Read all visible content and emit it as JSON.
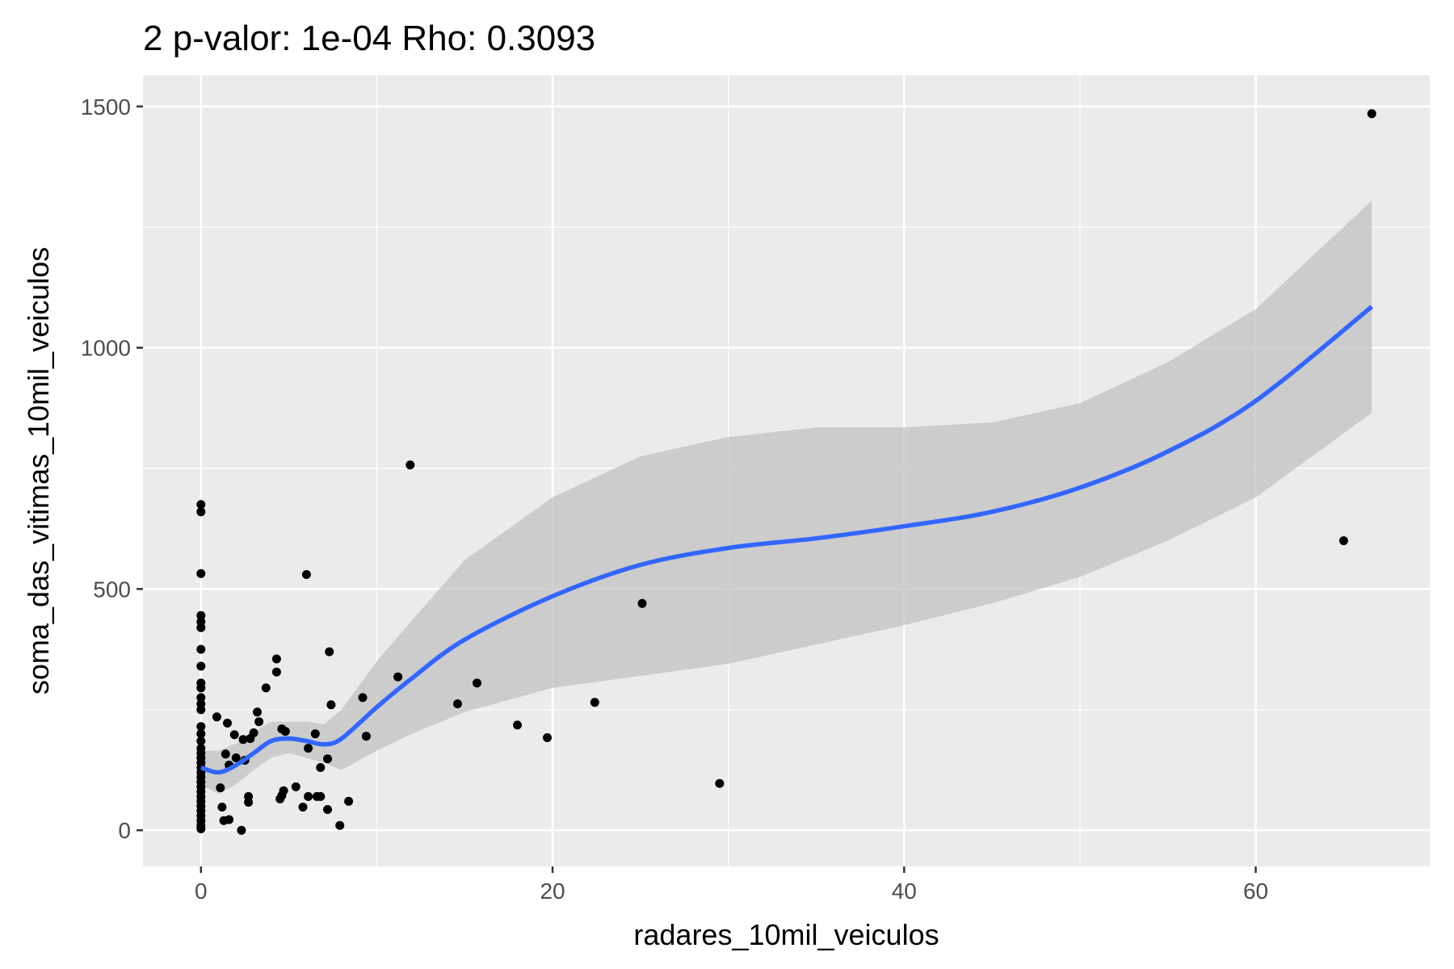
{
  "chart_data": {
    "type": "scatter",
    "title": "2 p-valor: 1e-04 Rho: 0.3093",
    "xlabel": "radares_10mil_veiculos",
    "ylabel": "soma_das_vitimas_10mil_veiculos",
    "xlim": [
      -3.3,
      69.9
    ],
    "ylim": [
      -75,
      1565
    ],
    "x_ticks": [
      0,
      20,
      40,
      60
    ],
    "y_ticks": [
      0,
      500,
      1000,
      1500
    ],
    "grid": true,
    "legend": "none",
    "colors": {
      "panel": "#ebebeb",
      "grid": "#ffffff",
      "point": "#000000",
      "smooth_line": "#3366ff",
      "ribbon": "#bfbfbf"
    },
    "points": [
      {
        "x": 0,
        "y": 675
      },
      {
        "x": 0,
        "y": 660
      },
      {
        "x": 0,
        "y": 532
      },
      {
        "x": 0,
        "y": 445
      },
      {
        "x": 0,
        "y": 432
      },
      {
        "x": 0,
        "y": 420
      },
      {
        "x": 0,
        "y": 375
      },
      {
        "x": 0,
        "y": 340
      },
      {
        "x": 0,
        "y": 305
      },
      {
        "x": 0,
        "y": 295
      },
      {
        "x": 0,
        "y": 275
      },
      {
        "x": 0,
        "y": 262
      },
      {
        "x": 0,
        "y": 250
      },
      {
        "x": 0,
        "y": 215
      },
      {
        "x": 0,
        "y": 200
      },
      {
        "x": 0,
        "y": 185
      },
      {
        "x": 0,
        "y": 170
      },
      {
        "x": 0,
        "y": 160
      },
      {
        "x": 0,
        "y": 150
      },
      {
        "x": 0,
        "y": 140
      },
      {
        "x": 0,
        "y": 130
      },
      {
        "x": 0,
        "y": 120
      },
      {
        "x": 0,
        "y": 110
      },
      {
        "x": 0,
        "y": 100
      },
      {
        "x": 0,
        "y": 90
      },
      {
        "x": 0,
        "y": 80
      },
      {
        "x": 0,
        "y": 70
      },
      {
        "x": 0,
        "y": 60
      },
      {
        "x": 0,
        "y": 50
      },
      {
        "x": 0,
        "y": 40
      },
      {
        "x": 0,
        "y": 30
      },
      {
        "x": 0,
        "y": 20
      },
      {
        "x": 0,
        "y": 10
      },
      {
        "x": 0,
        "y": 3
      },
      {
        "x": 0.9,
        "y": 235
      },
      {
        "x": 1.1,
        "y": 88
      },
      {
        "x": 1.2,
        "y": 48
      },
      {
        "x": 1.3,
        "y": 20
      },
      {
        "x": 1.4,
        "y": 158
      },
      {
        "x": 1.5,
        "y": 222
      },
      {
        "x": 1.6,
        "y": 22
      },
      {
        "x": 1.6,
        "y": 135
      },
      {
        "x": 1.9,
        "y": 198
      },
      {
        "x": 2.0,
        "y": 150
      },
      {
        "x": 2.3,
        "y": 0
      },
      {
        "x": 2.4,
        "y": 188
      },
      {
        "x": 2.5,
        "y": 145
      },
      {
        "x": 2.7,
        "y": 70
      },
      {
        "x": 2.7,
        "y": 58
      },
      {
        "x": 2.8,
        "y": 190
      },
      {
        "x": 3.0,
        "y": 202
      },
      {
        "x": 3.2,
        "y": 245
      },
      {
        "x": 3.3,
        "y": 225
      },
      {
        "x": 3.7,
        "y": 295
      },
      {
        "x": 4.3,
        "y": 355
      },
      {
        "x": 4.3,
        "y": 328
      },
      {
        "x": 4.5,
        "y": 65
      },
      {
        "x": 4.6,
        "y": 72
      },
      {
        "x": 4.6,
        "y": 210
      },
      {
        "x": 4.7,
        "y": 82
      },
      {
        "x": 4.8,
        "y": 205
      },
      {
        "x": 5.4,
        "y": 90
      },
      {
        "x": 5.8,
        "y": 48
      },
      {
        "x": 6.0,
        "y": 530
      },
      {
        "x": 6.1,
        "y": 70
      },
      {
        "x": 6.1,
        "y": 170
      },
      {
        "x": 6.5,
        "y": 200
      },
      {
        "x": 6.6,
        "y": 70
      },
      {
        "x": 6.8,
        "y": 70
      },
      {
        "x": 6.8,
        "y": 130
      },
      {
        "x": 7.2,
        "y": 43
      },
      {
        "x": 7.2,
        "y": 148
      },
      {
        "x": 7.3,
        "y": 370
      },
      {
        "x": 7.4,
        "y": 260
      },
      {
        "x": 7.9,
        "y": 10
      },
      {
        "x": 8.4,
        "y": 60
      },
      {
        "x": 9.2,
        "y": 275
      },
      {
        "x": 9.4,
        "y": 195
      },
      {
        "x": 11.2,
        "y": 318
      },
      {
        "x": 11.9,
        "y": 757
      },
      {
        "x": 14.6,
        "y": 262
      },
      {
        "x": 15.7,
        "y": 305
      },
      {
        "x": 18.0,
        "y": 218
      },
      {
        "x": 19.7,
        "y": 192
      },
      {
        "x": 22.4,
        "y": 265
      },
      {
        "x": 25.1,
        "y": 470
      },
      {
        "x": 29.5,
        "y": 97
      },
      {
        "x": 65.0,
        "y": 600
      },
      {
        "x": 66.6,
        "y": 1485
      }
    ],
    "smooth": {
      "x": [
        0,
        1,
        2,
        3,
        4,
        5,
        6,
        7,
        8,
        10,
        12,
        15,
        20,
        25,
        30,
        35,
        40,
        45,
        50,
        55,
        60,
        66.6
      ],
      "y": [
        130,
        120,
        135,
        160,
        185,
        190,
        185,
        178,
        190,
        255,
        315,
        395,
        485,
        550,
        585,
        605,
        630,
        660,
        710,
        785,
        890,
        1085
      ],
      "ymin": [
        95,
        75,
        95,
        125,
        150,
        160,
        150,
        140,
        125,
        165,
        200,
        245,
        295,
        320,
        345,
        385,
        425,
        470,
        525,
        600,
        690,
        865
      ],
      "ymax": [
        165,
        165,
        180,
        205,
        225,
        225,
        225,
        220,
        250,
        350,
        435,
        560,
        690,
        775,
        815,
        835,
        835,
        845,
        885,
        970,
        1080,
        1305
      ]
    }
  }
}
